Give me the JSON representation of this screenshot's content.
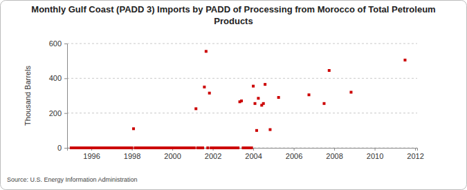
{
  "chart_data": {
    "type": "scatter",
    "title": "Monthly Gulf Coast (PADD 3) Imports by PADD of Processing from Morocco of Total Petroleum Products",
    "y_label": "Thousand Barrels",
    "source": "Source: U.S. Energy Information Administration",
    "color": "#cc0000",
    "marker": "square",
    "grid": "y",
    "xlim": [
      1994.8,
      2012.1
    ],
    "xticks": [
      1996,
      1998,
      2000,
      2002,
      2004,
      2006,
      2008,
      2010,
      2012
    ],
    "ylim": [
      0,
      600
    ],
    "yticks": [
      0,
      200,
      400,
      600
    ],
    "x": [
      1995.0,
      1995.083,
      1995.167,
      1995.25,
      1995.333,
      1995.417,
      1995.5,
      1995.583,
      1995.667,
      1995.75,
      1995.833,
      1995.917,
      1996.0,
      1996.083,
      1996.167,
      1996.25,
      1996.333,
      1996.417,
      1996.5,
      1996.583,
      1996.667,
      1996.75,
      1996.833,
      1996.917,
      1997.0,
      1997.083,
      1997.167,
      1997.25,
      1997.333,
      1997.417,
      1997.5,
      1997.583,
      1997.667,
      1997.75,
      1997.833,
      1997.917,
      1998.0,
      1998.083,
      1998.167,
      1998.25,
      1998.333,
      1998.417,
      1998.5,
      1998.583,
      1998.667,
      1998.75,
      1998.833,
      1998.917,
      1999.0,
      1999.083,
      1999.167,
      1999.25,
      1999.333,
      1999.417,
      1999.5,
      1999.583,
      1999.667,
      1999.75,
      1999.833,
      1999.917,
      2000.0,
      2000.083,
      2000.167,
      2000.25,
      2000.333,
      2000.417,
      2000.5,
      2000.583,
      2000.667,
      2000.75,
      2000.833,
      2000.917,
      2001.0,
      2001.083,
      2001.167,
      2001.25,
      2001.333,
      2001.417,
      2001.5,
      2001.583,
      2001.667,
      2001.75,
      2001.833,
      2001.917,
      2002.0,
      2002.083,
      2002.167,
      2002.25,
      2002.333,
      2002.417,
      2002.5,
      2002.583,
      2002.667,
      2002.75,
      2002.833,
      2002.917,
      2003.0,
      2003.083,
      2003.167,
      2003.25,
      2003.333,
      2003.417,
      2003.5,
      2003.583,
      2003.667,
      2003.75,
      2003.833,
      2003.917,
      2004.0,
      2004.083,
      2004.167,
      2004.25,
      2004.417,
      2004.5,
      2004.583,
      2004.833,
      2005.25,
      2006.75,
      2007.5,
      2007.75,
      2008.833,
      2011.5
    ],
    "values": [
      0,
      0,
      0,
      0,
      0,
      0,
      0,
      0,
      0,
      0,
      0,
      0,
      0,
      0,
      0,
      0,
      0,
      0,
      0,
      0,
      0,
      0,
      0,
      0,
      0,
      0,
      0,
      0,
      0,
      0,
      0,
      0,
      0,
      0,
      0,
      0,
      0,
      110,
      0,
      0,
      0,
      0,
      0,
      0,
      0,
      0,
      0,
      0,
      0,
      0,
      0,
      0,
      0,
      0,
      0,
      0,
      0,
      0,
      0,
      0,
      0,
      0,
      0,
      0,
      0,
      0,
      0,
      0,
      0,
      0,
      0,
      0,
      0,
      0,
      225,
      0,
      0,
      0,
      0,
      350,
      555,
      0,
      315,
      0,
      0,
      0,
      0,
      0,
      0,
      0,
      0,
      0,
      0,
      0,
      0,
      0,
      0,
      0,
      0,
      0,
      265,
      270,
      0,
      0,
      0,
      0,
      0,
      0,
      355,
      255,
      100,
      285,
      245,
      255,
      365,
      105,
      290,
      305,
      255,
      445,
      320,
      505
    ]
  }
}
